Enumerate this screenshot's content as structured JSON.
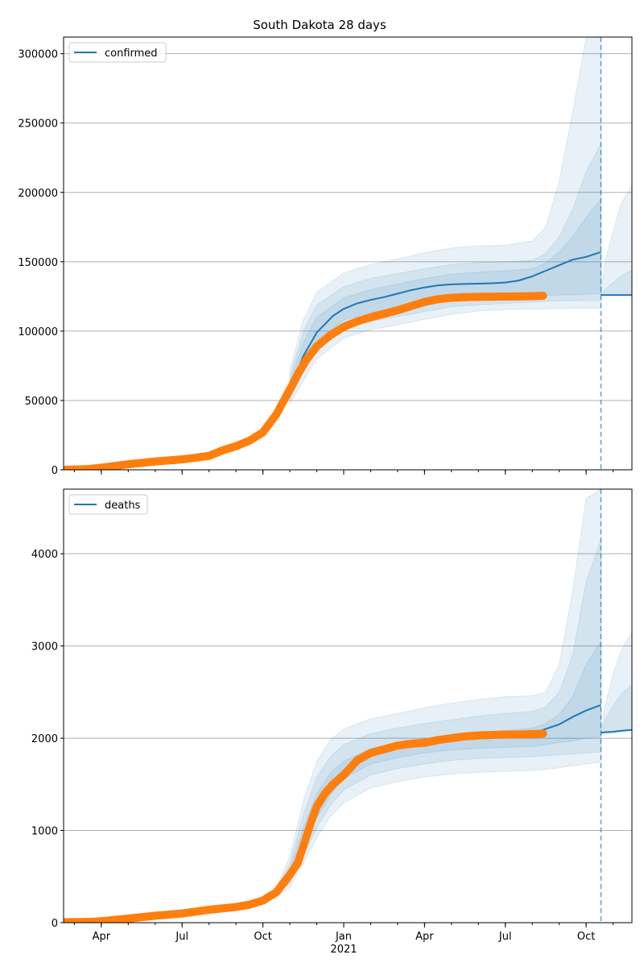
{
  "chart_data": [
    {
      "type": "line",
      "title": "South Dakota 28 days",
      "legend": [
        "confirmed"
      ],
      "legend_position": "top-left",
      "grid": "horizontal",
      "xlim_months": [
        2.6,
        23.7
      ],
      "ylim": [
        0,
        312000
      ],
      "yticks": [
        0,
        50000,
        100000,
        150000,
        200000,
        250000,
        300000
      ],
      "xticks": [
        {
          "m": 4,
          "label": "Apr"
        },
        {
          "m": 7,
          "label": "Jul"
        },
        {
          "m": 10,
          "label": "Oct"
        },
        {
          "m": 13,
          "label": "Jan"
        },
        {
          "m": 16,
          "label": "Apr"
        },
        {
          "m": 19,
          "label": "Jul"
        },
        {
          "m": 22,
          "label": "Oct"
        }
      ],
      "year_label": {
        "m": 13,
        "label": "2021"
      },
      "forecast_start": 22.55,
      "fit": {
        "x": [
          2.6,
          3.5,
          4.0,
          5.0,
          6.0,
          7.0,
          8.0,
          8.5,
          9.0,
          9.5,
          10.0,
          10.5,
          11.0,
          11.5,
          12.0,
          12.3,
          12.6,
          13.0,
          13.5,
          14.0,
          14.5,
          15.0,
          15.5,
          16.0,
          16.5,
          17.0,
          17.5,
          18.0,
          18.5,
          19.0,
          19.5,
          20.0,
          20.5,
          21.0,
          21.5,
          22.0,
          22.55
        ],
        "y": [
          0,
          500,
          1500,
          4000,
          6000,
          7500,
          10000,
          14000,
          17000,
          21000,
          27000,
          40000,
          58000,
          82000,
          99000,
          105000,
          111000,
          116000,
          120000,
          122500,
          124500,
          127000,
          129500,
          131500,
          133000,
          133700,
          134000,
          134200,
          134500,
          135000,
          136500,
          139500,
          143500,
          147500,
          151500,
          153500,
          157000
        ]
      },
      "observed": {
        "x": [
          2.6,
          3.5,
          4.0,
          5.0,
          6.0,
          7.0,
          8.0,
          8.5,
          9.0,
          9.5,
          10.0,
          10.5,
          11.0,
          11.3,
          11.6,
          12.0,
          12.5,
          13.0,
          13.5,
          14.0,
          14.5,
          15.0,
          15.5,
          16.0,
          16.5,
          17.0,
          17.5,
          18.0,
          18.5,
          19.0,
          19.5,
          20.0,
          20.4
        ],
        "y": [
          0,
          500,
          1500,
          4000,
          6000,
          7500,
          10000,
          14000,
          17000,
          21000,
          27000,
          40000,
          58000,
          69000,
          79000,
          89000,
          97000,
          103000,
          107000,
          110000,
          112500,
          115000,
          118000,
          121000,
          123000,
          124000,
          124500,
          124700,
          124800,
          124900,
          125000,
          125200,
          125500
        ]
      },
      "bands_x": [
        11.0,
        11.5,
        12.0,
        13.0,
        14.0,
        15.0,
        16.0,
        17.0,
        18.0,
        19.0,
        20.0,
        20.5,
        21.0,
        21.5,
        22.0,
        22.55
      ],
      "bands": [
        {
          "lower": [
            48000,
            64000,
            80000,
            95000,
            101000,
            104500,
            108500,
            112000,
            114500,
            115500,
            116000,
            116000,
            116200,
            116300,
            116300,
            116300
          ],
          "upper": [
            72000,
            108000,
            128000,
            142000,
            148000,
            152000,
            156500,
            160000,
            161500,
            162000,
            165000,
            175000,
            208000,
            258000,
            312000,
            312000
          ]
        },
        {
          "lower": [
            51000,
            70000,
            86000,
            102000,
            107000,
            110500,
            114000,
            117500,
            119000,
            120000,
            121000,
            121500,
            121800,
            121900,
            122000,
            122000
          ],
          "upper": [
            67000,
            100000,
            119000,
            132000,
            138000,
            141500,
            145000,
            148000,
            149500,
            150000,
            151000,
            156000,
            168000,
            188000,
            215000,
            235000
          ]
        },
        {
          "lower": [
            54000,
            76000,
            92000,
            108000,
            113500,
            116000,
            119500,
            122000,
            123500,
            124000,
            125000,
            125500,
            126000,
            126000,
            126500,
            127000
          ],
          "upper": [
            63000,
            92000,
            110000,
            124000,
            130000,
            134000,
            138000,
            141000,
            142500,
            143500,
            145000,
            149000,
            157000,
            168000,
            182000,
            195000
          ]
        }
      ],
      "post_forecast": {
        "x": [
          22.55,
          22.7,
          23.0,
          23.3,
          23.7
        ],
        "line": [
          126000,
          126000,
          126000,
          126000,
          126000
        ],
        "bands": [
          {
            "lower": [
              126000,
              126000,
              126000,
              126000,
              126000
            ],
            "upper": [
              126000,
              150000,
              172000,
              192000,
              205000
            ]
          },
          {
            "lower": [
              126000,
              126000,
              126000,
              126000,
              126000
            ],
            "upper": [
              126000,
              130000,
              135000,
              140000,
              144000
            ]
          }
        ]
      }
    },
    {
      "type": "line",
      "title": "",
      "legend": [
        "deaths"
      ],
      "legend_position": "top-left",
      "grid": "horizontal",
      "xlim_months": [
        2.6,
        23.7
      ],
      "ylim": [
        0,
        4700
      ],
      "yticks": [
        0,
        1000,
        2000,
        3000,
        4000
      ],
      "xticks": [
        {
          "m": 4,
          "label": "Apr"
        },
        {
          "m": 7,
          "label": "Jul"
        },
        {
          "m": 10,
          "label": "Oct"
        },
        {
          "m": 13,
          "label": "Jan"
        },
        {
          "m": 16,
          "label": "Apr"
        },
        {
          "m": 19,
          "label": "Jul"
        },
        {
          "m": 22,
          "label": "Oct"
        }
      ],
      "year_label": {
        "m": 13,
        "label": "2021"
      },
      "forecast_start": 22.55,
      "fit": {
        "x": [
          2.6,
          3.5,
          4.0,
          5.0,
          6.0,
          7.0,
          8.0,
          9.0,
          9.5,
          10.0,
          10.5,
          11.0,
          11.3,
          11.6,
          12.0,
          12.3,
          12.6,
          13.0,
          13.5,
          14.0,
          14.5,
          15.0,
          15.5,
          16.0,
          16.5,
          17.0,
          17.5,
          18.0,
          18.5,
          19.0,
          19.5,
          20.0,
          20.5,
          21.0,
          21.5,
          22.0,
          22.55
        ],
        "y": [
          5,
          8,
          15,
          45,
          75,
          100,
          140,
          170,
          195,
          240,
          330,
          520,
          700,
          980,
          1280,
          1420,
          1540,
          1650,
          1760,
          1850,
          1900,
          1930,
          1950,
          1970,
          1990,
          2010,
          2020,
          2030,
          2035,
          2035,
          2035,
          2050,
          2100,
          2150,
          2230,
          2300,
          2360
        ]
      },
      "observed": {
        "x": [
          2.6,
          3.5,
          4.0,
          5.0,
          6.0,
          7.0,
          8.0,
          9.0,
          9.5,
          10.0,
          10.5,
          11.0,
          11.3,
          11.6,
          11.8,
          12.0,
          12.3,
          12.6,
          13.0,
          13.5,
          14.0,
          14.5,
          15.0,
          15.5,
          16.0,
          16.5,
          17.0,
          17.5,
          18.0,
          18.5,
          19.0,
          19.5,
          20.0,
          20.4
        ],
        "y": [
          5,
          8,
          15,
          45,
          75,
          100,
          140,
          170,
          195,
          240,
          330,
          520,
          650,
          920,
          1100,
          1260,
          1400,
          1500,
          1600,
          1760,
          1840,
          1880,
          1920,
          1940,
          1950,
          1980,
          2000,
          2020,
          2030,
          2035,
          2040,
          2040,
          2045,
          2050
        ]
      },
      "bands_x": [
        10.5,
        11.0,
        11.5,
        12.0,
        12.5,
        13.0,
        14.0,
        15.0,
        16.0,
        17.0,
        18.0,
        19.0,
        20.0,
        20.5,
        21.0,
        21.5,
        22.0,
        22.55
      ],
      "bands": [
        {
          "lower": [
            280,
            380,
            640,
            920,
            1150,
            1300,
            1460,
            1530,
            1580,
            1610,
            1630,
            1640,
            1650,
            1660,
            1680,
            1700,
            1720,
            1740
          ],
          "upper": [
            380,
            720,
            1320,
            1750,
            1980,
            2100,
            2210,
            2270,
            2330,
            2380,
            2420,
            2450,
            2460,
            2500,
            2800,
            3600,
            4600,
            4700
          ]
        },
        {
          "lower": [
            300,
            430,
            730,
            1030,
            1270,
            1440,
            1600,
            1670,
            1720,
            1760,
            1780,
            1790,
            1800,
            1810,
            1820,
            1830,
            1840,
            1850
          ],
          "upper": [
            360,
            640,
            1170,
            1580,
            1800,
            1930,
            2050,
            2110,
            2160,
            2200,
            2240,
            2270,
            2290,
            2340,
            2500,
            2900,
            3700,
            4150
          ]
        },
        {
          "lower": [
            315,
            470,
            820,
            1140,
            1380,
            1560,
            1720,
            1790,
            1840,
            1870,
            1890,
            1900,
            1910,
            1930,
            1950,
            1970,
            2000,
            2020
          ],
          "upper": [
            345,
            580,
            1030,
            1400,
            1620,
            1750,
            1890,
            1950,
            2000,
            2030,
            2060,
            2080,
            2110,
            2160,
            2260,
            2450,
            2800,
            3050
          ]
        }
      ],
      "post_forecast": {
        "x": [
          22.55,
          22.7,
          23.0,
          23.3,
          23.7
        ],
        "line": [
          2060,
          2065,
          2070,
          2080,
          2090
        ],
        "bands": [
          {
            "lower": [
              2060,
              2050,
              2060,
              2070,
              2090
            ],
            "upper": [
              2060,
              2350,
              2700,
              2950,
              3150
            ]
          },
          {
            "lower": [
              2060,
              2058,
              2065,
              2075,
              2090
            ],
            "upper": [
              2060,
              2200,
              2350,
              2480,
              2580
            ]
          }
        ]
      }
    }
  ],
  "colors": {
    "fit_line": "#1f77b4",
    "band_fill": "#1f77b4",
    "observed_points": "#ff7f0e",
    "forecast_marker": "#1f77b4",
    "grid": "#b0b0b0",
    "axes": "#000000"
  }
}
